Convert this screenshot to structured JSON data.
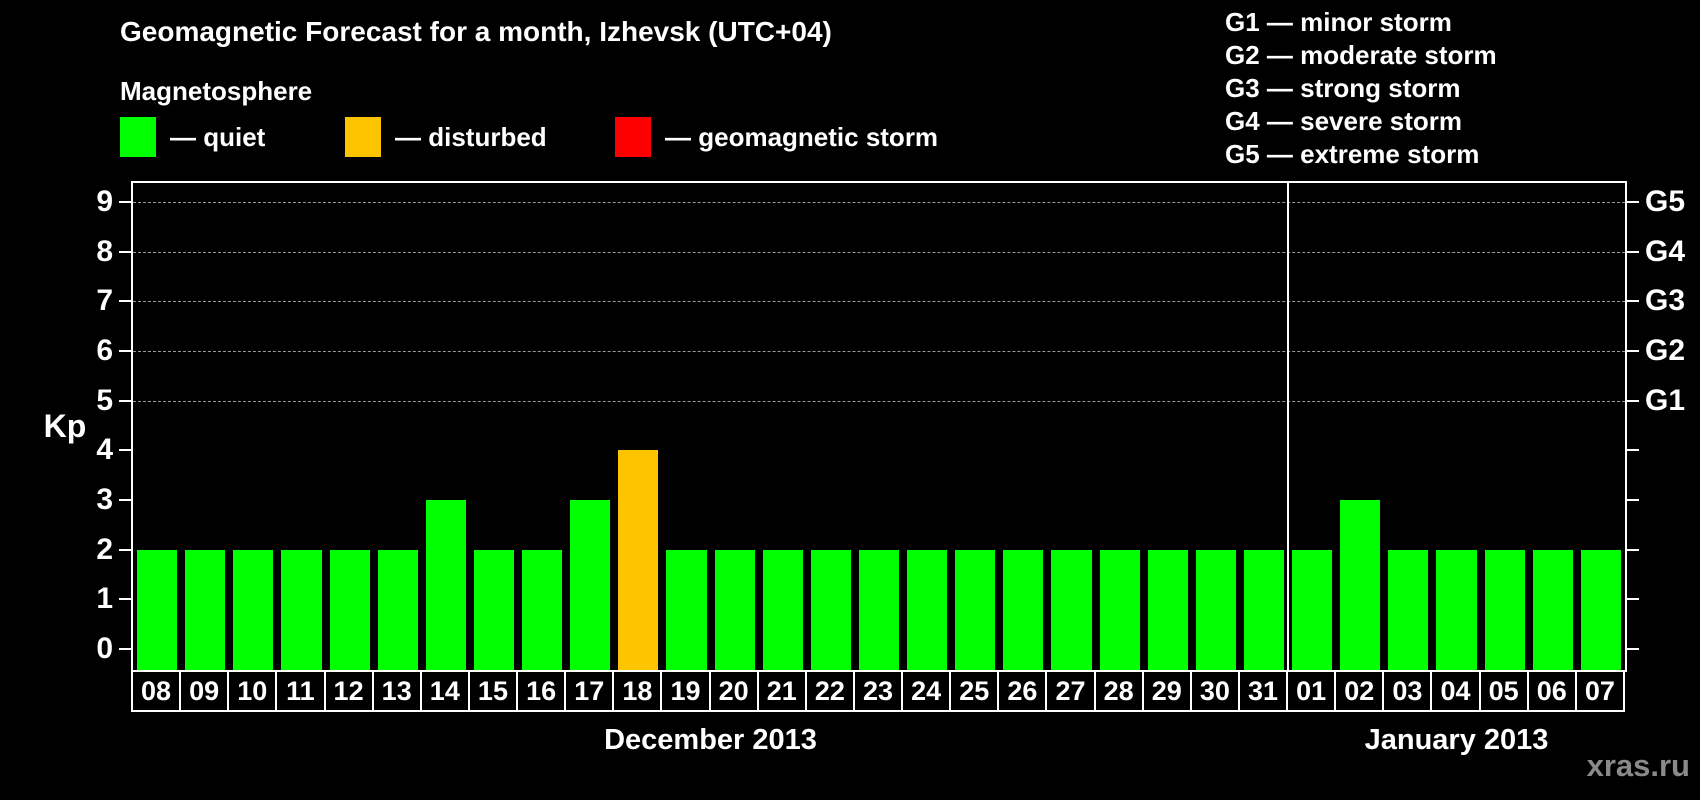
{
  "title": "Geomagnetic Forecast for a month, Izhevsk (UTC+04)",
  "legend": {
    "heading": "Magnetosphere",
    "items": [
      {
        "name": "quiet",
        "label": "— quiet",
        "color": "#00ff00"
      },
      {
        "name": "disturbed",
        "label": "— disturbed",
        "color": "#ffc400"
      },
      {
        "name": "storm",
        "label": "— geomagnetic storm",
        "color": "#ff0000"
      }
    ]
  },
  "g_legend": [
    "G1 — minor storm",
    "G2 — moderate storm",
    "G3 — strong storm",
    "G4 — severe storm",
    "G5 — extreme storm"
  ],
  "watermark": "xras.ru",
  "chart_data": {
    "type": "bar",
    "title": "Geomagnetic Forecast for a month, Izhevsk (UTC+04)",
    "xlabel": "",
    "ylabel": "Kp",
    "ylim": [
      0,
      9
    ],
    "yticks": [
      0,
      1,
      2,
      3,
      4,
      5,
      6,
      7,
      8,
      9
    ],
    "grid": "dashed horizontal lines at Kp 5-9 only",
    "legend_position": "top-left",
    "right_axis": [
      {
        "kp": 5,
        "label": "G1"
      },
      {
        "kp": 6,
        "label": "G2"
      },
      {
        "kp": 7,
        "label": "G3"
      },
      {
        "kp": 8,
        "label": "G4"
      },
      {
        "kp": 9,
        "label": "G5"
      }
    ],
    "gridlines_kp": [
      5,
      6,
      7,
      8,
      9
    ],
    "status_colors": {
      "quiet": "#00ff00",
      "disturbed": "#ffc400",
      "storm": "#ff0000"
    },
    "months": [
      {
        "label": "December 2013",
        "days": [
          "08",
          "09",
          "10",
          "11",
          "12",
          "13",
          "14",
          "15",
          "16",
          "17",
          "18",
          "19",
          "20",
          "21",
          "22",
          "23",
          "24",
          "25",
          "26",
          "27",
          "28",
          "29",
          "30",
          "31"
        ],
        "values": [
          2,
          2,
          2,
          2,
          2,
          2,
          3,
          2,
          2,
          3,
          4,
          2,
          2,
          2,
          2,
          2,
          2,
          2,
          2,
          2,
          2,
          2,
          2,
          2
        ],
        "status": [
          "quiet",
          "quiet",
          "quiet",
          "quiet",
          "quiet",
          "quiet",
          "quiet",
          "quiet",
          "quiet",
          "quiet",
          "disturbed",
          "quiet",
          "quiet",
          "quiet",
          "quiet",
          "quiet",
          "quiet",
          "quiet",
          "quiet",
          "quiet",
          "quiet",
          "quiet",
          "quiet",
          "quiet"
        ]
      },
      {
        "label": "January 2013",
        "days": [
          "01",
          "02",
          "03",
          "04",
          "05",
          "06",
          "07"
        ],
        "values": [
          2,
          3,
          2,
          2,
          2,
          2,
          2
        ],
        "status": [
          "quiet",
          "quiet",
          "quiet",
          "quiet",
          "quiet",
          "quiet",
          "quiet"
        ]
      }
    ]
  }
}
